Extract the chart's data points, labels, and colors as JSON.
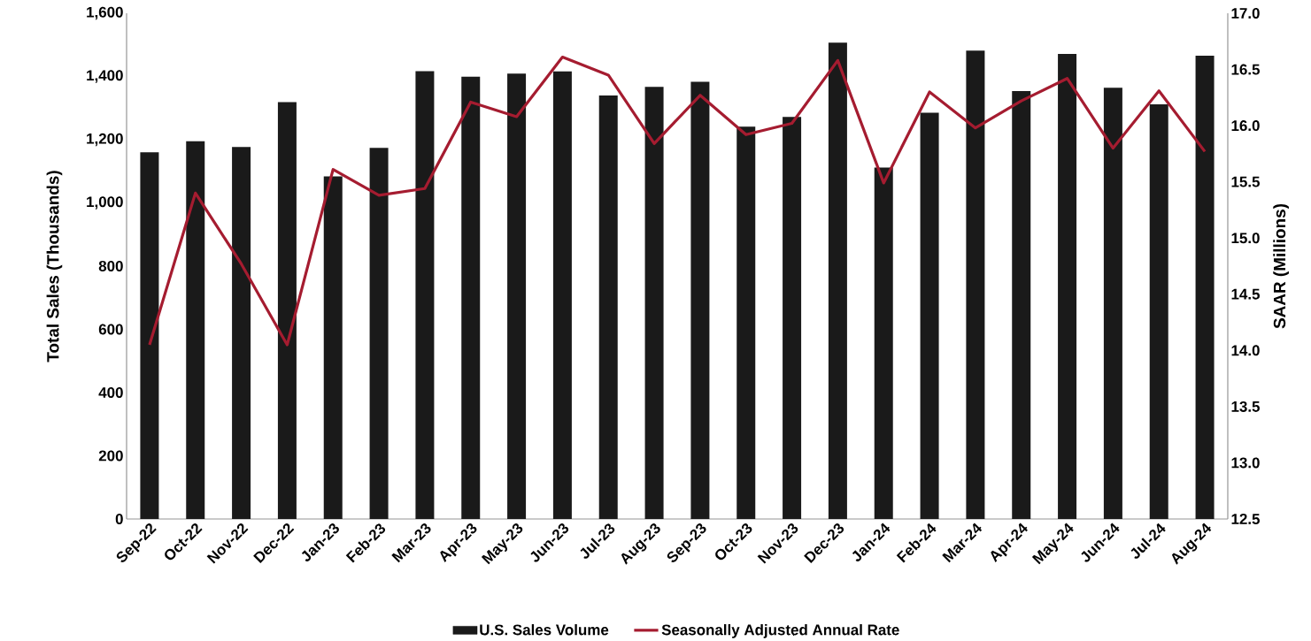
{
  "chart_data": {
    "type": "bar",
    "categories": [
      "Sep-22",
      "Oct-22",
      "Nov-22",
      "Dec-22",
      "Jan-23",
      "Feb-23",
      "Mar-23",
      "Apr-23",
      "May-23",
      "Jun-23",
      "Jul-23",
      "Aug-23",
      "Sep-23",
      "Oct-23",
      "Nov-23",
      "Dec-23",
      "Jan-24",
      "Feb-24",
      "Mar-24",
      "Apr-24",
      "May-24",
      "Jun-24",
      "Jul-24",
      "Aug-24"
    ],
    "series": [
      {
        "name": "U.S. Sales Volume",
        "color": "#1a1a1a",
        "values": [
          1160,
          1195,
          1177,
          1319,
          1084,
          1174,
          1417,
          1399,
          1409,
          1416,
          1340,
          1367,
          1383,
          1241,
          1272,
          1507,
          1112,
          1285,
          1482,
          1354,
          1471,
          1364,
          1312,
          1466
        ]
      },
      {
        "name": "Seasonally Adjusted Annual Rate",
        "type": "line",
        "axis": "y2",
        "color": "#a51c30",
        "values": [
          14.05,
          15.4,
          14.77,
          14.05,
          15.61,
          15.38,
          15.44,
          16.21,
          16.08,
          16.61,
          16.45,
          15.84,
          16.27,
          15.92,
          16.02,
          16.58,
          15.49,
          16.3,
          15.98,
          16.22,
          16.42,
          15.8,
          16.31,
          15.77
        ]
      }
    ],
    "ylabel": "Total Sales (Thousands)",
    "y2label": "SAAR (Millions)",
    "ylim": [
      0,
      1600
    ],
    "yticks": [
      0,
      200,
      400,
      600,
      800,
      {
        "value": 1000,
        "label": "1,000"
      },
      {
        "value": 1200,
        "label": "1,200"
      },
      {
        "value": 1400,
        "label": "1,400"
      },
      {
        "value": 1600,
        "label": "1,600"
      }
    ],
    "y2lim": [
      12.5,
      17.0
    ],
    "y2ticks": [
      {
        "value": 12.5,
        "label": "12.5"
      },
      {
        "value": 13,
        "label": "13.0"
      },
      {
        "value": 13.5,
        "label": "13.5"
      },
      {
        "value": 14,
        "label": "14.0"
      },
      {
        "value": 14.5,
        "label": "14.5"
      },
      {
        "value": 15,
        "label": "15.0"
      },
      {
        "value": 15.5,
        "label": "15.5"
      },
      {
        "value": 16,
        "label": "16.0"
      },
      {
        "value": 16.5,
        "label": "16.5"
      },
      {
        "value": 17,
        "label": "17.0"
      }
    ],
    "legend": "bottom",
    "marker": "none",
    "line_style": "solid"
  }
}
